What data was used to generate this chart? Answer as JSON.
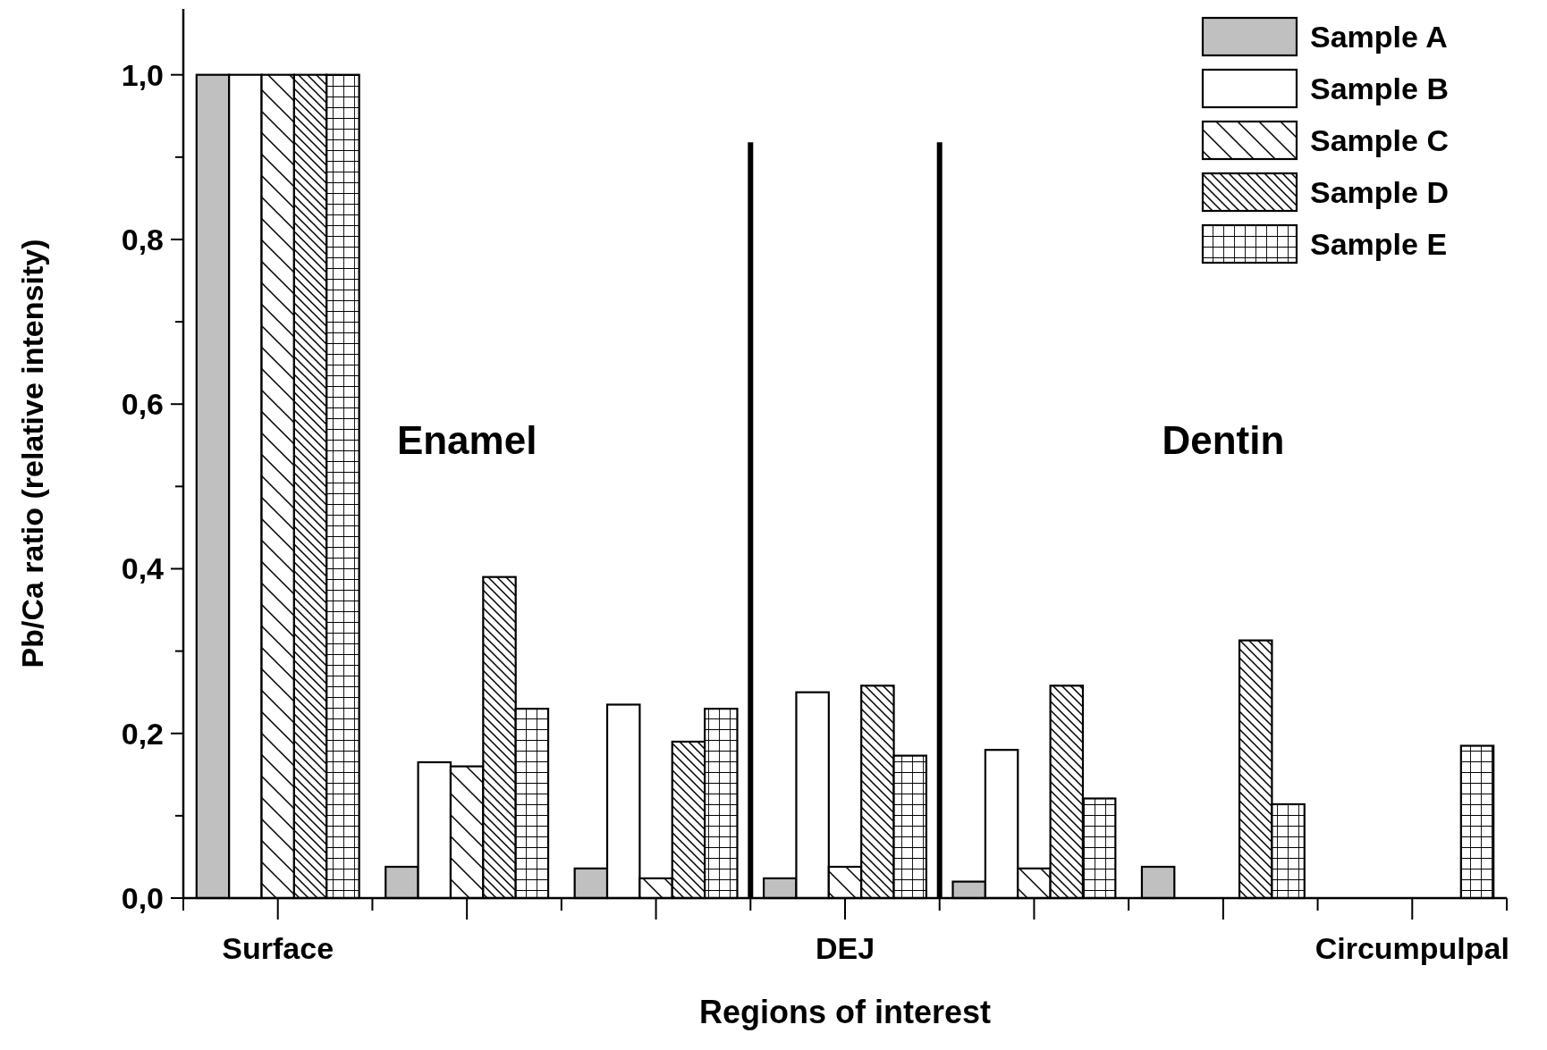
{
  "chart_data": {
    "type": "bar",
    "xlabel": "Regions of interest",
    "ylabel": "Pb/Ca ratio (relative intensity)",
    "categories": [
      "Surface",
      null,
      null,
      "DEJ",
      null,
      null,
      "Circumpulpal"
    ],
    "ylim": [
      0,
      1.08
    ],
    "yticks": [
      {
        "value": 0,
        "label": "0,0"
      },
      {
        "value": 0.1,
        "label": null
      },
      {
        "value": 0.2,
        "label": "0,2"
      },
      {
        "value": 0.3,
        "label": null
      },
      {
        "value": 0.4,
        "label": "0,4"
      },
      {
        "value": 0.5,
        "label": null
      },
      {
        "value": 0.6,
        "label": "0,6"
      },
      {
        "value": 0.7,
        "label": null
      },
      {
        "value": 0.8,
        "label": "0,8"
      },
      {
        "value": 0.9,
        "label": null
      },
      {
        "value": 1,
        "label": "1,0"
      }
    ],
    "series": [
      {
        "name": "Sample A",
        "color": "#c0c0c0",
        "values": [
          1,
          0.038,
          0.036,
          0.024,
          0.02,
          0.038,
          null
        ]
      },
      {
        "name": "Sample B",
        "color": "#ffffff",
        "values": [
          1,
          0.165,
          0.235,
          0.25,
          0.18,
          null,
          null
        ]
      },
      {
        "name": "Sample C",
        "color": "#000000",
        "values": [
          1,
          0.16,
          0.024,
          0.038,
          0.036,
          null,
          null
        ]
      },
      {
        "name": "Sample D",
        "color": "#000000",
        "values": [
          1,
          0.39,
          0.19,
          0.258,
          0.258,
          0.313,
          null
        ]
      },
      {
        "name": "Sample E",
        "color": "#000000",
        "values": [
          1,
          0.23,
          0.23,
          0.173,
          0.121,
          0.114,
          0.185
        ]
      }
    ],
    "annotations": [
      "Enamel",
      "Dentin"
    ],
    "legend": "top right",
    "grid": false
  }
}
